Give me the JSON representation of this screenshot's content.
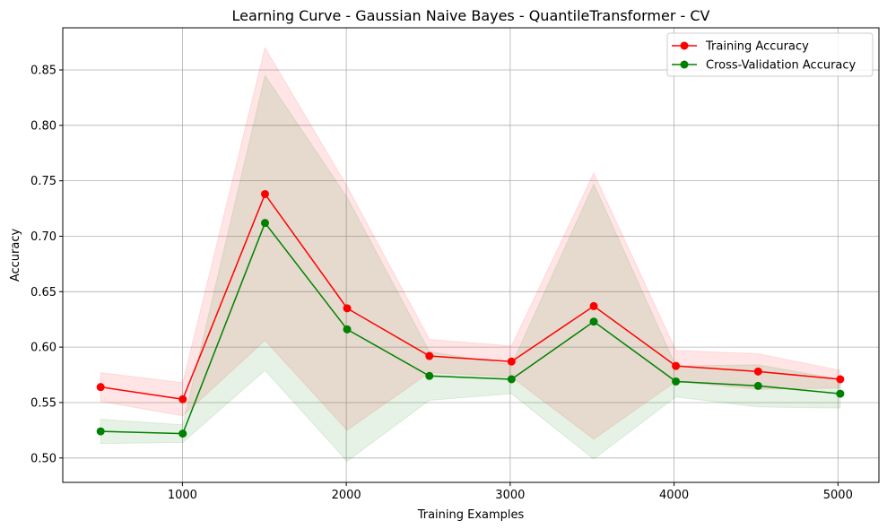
{
  "chart_data": {
    "type": "line",
    "title": "Learning Curve - Gaussian Naive Bayes - QuantileTransformer - CV",
    "xlabel": "Training Examples",
    "ylabel": "Accuracy",
    "xlim": [
      270,
      5250
    ],
    "ylim": [
      0.478,
      0.888
    ],
    "xticks": [
      1000,
      2000,
      3000,
      4000,
      5000
    ],
    "yticks": [
      0.5,
      0.55,
      0.6,
      0.65,
      0.7,
      0.75,
      0.8,
      0.85
    ],
    "grid": true,
    "legend_position": "top-right",
    "x": [
      501,
      1002,
      1504,
      2005,
      2507,
      3008,
      3510,
      4011,
      4513,
      5014
    ],
    "series": [
      {
        "name": "Training Accuracy",
        "color": "#ff0000",
        "values": [
          0.564,
          0.553,
          0.738,
          0.635,
          0.592,
          0.587,
          0.637,
          0.583,
          0.578,
          0.571
        ],
        "band_upper": [
          0.577,
          0.568,
          0.87,
          0.745,
          0.607,
          0.601,
          0.757,
          0.597,
          0.594,
          0.579
        ],
        "band_lower": [
          0.551,
          0.538,
          0.606,
          0.525,
          0.577,
          0.573,
          0.517,
          0.569,
          0.562,
          0.563
        ]
      },
      {
        "name": "Cross-Validation Accuracy",
        "color": "#008000",
        "values": [
          0.524,
          0.522,
          0.712,
          0.616,
          0.574,
          0.571,
          0.623,
          0.569,
          0.565,
          0.558
        ],
        "band_upper": [
          0.535,
          0.53,
          0.845,
          0.735,
          0.596,
          0.584,
          0.747,
          0.583,
          0.584,
          0.571
        ],
        "band_lower": [
          0.513,
          0.514,
          0.579,
          0.497,
          0.552,
          0.558,
          0.499,
          0.555,
          0.546,
          0.545
        ]
      }
    ]
  }
}
